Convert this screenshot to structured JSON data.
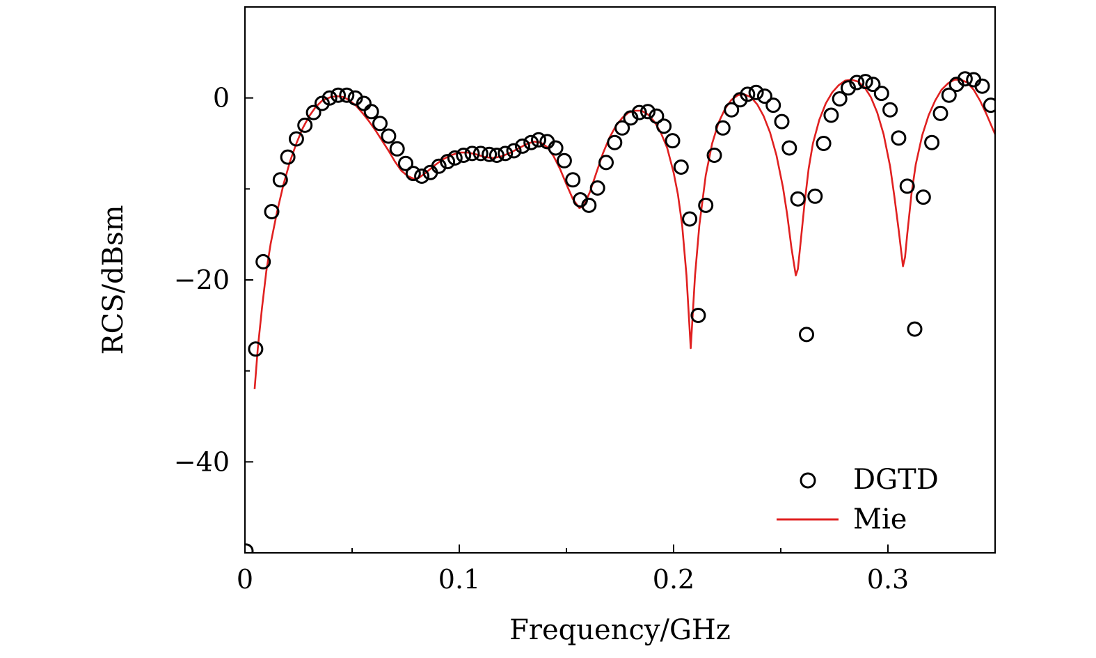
{
  "chart_data": {
    "type": "line",
    "title": "",
    "xlabel": "Frequency/GHz",
    "ylabel": "RCS/dBsm",
    "xlim": [
      0,
      0.35
    ],
    "ylim": [
      -50,
      10
    ],
    "x_ticks": [
      {
        "value": 0,
        "label": "0"
      },
      {
        "value": 0.1,
        "label": "0.1"
      },
      {
        "value": 0.2,
        "label": "0.2"
      },
      {
        "value": 0.3,
        "label": "0.3"
      }
    ],
    "x_minor_ticks": [
      0.05,
      0.15,
      0.25
    ],
    "y_ticks": [
      {
        "value": 0,
        "label": "0"
      },
      {
        "value": -20,
        "label": "−20"
      },
      {
        "value": -40,
        "label": "−40"
      }
    ],
    "y_minor_ticks": [
      -10,
      -30
    ],
    "grid": false,
    "legend_position": "bottom-right",
    "colors": {
      "mie": "#e02020",
      "dgtd": "#000000"
    },
    "series": [
      {
        "name": "DGTD",
        "style": "open-circle",
        "x": [
          0.0005,
          0.005,
          0.0085,
          0.0125,
          0.0165,
          0.02,
          0.024,
          0.028,
          0.032,
          0.036,
          0.0395,
          0.0435,
          0.0475,
          0.0515,
          0.0555,
          0.059,
          0.063,
          0.067,
          0.071,
          0.075,
          0.0785,
          0.0825,
          0.0865,
          0.0905,
          0.0945,
          0.098,
          0.102,
          0.106,
          0.11,
          0.114,
          0.1175,
          0.1215,
          0.1255,
          0.1295,
          0.1335,
          0.137,
          0.141,
          0.145,
          0.149,
          0.153,
          0.1565,
          0.1605,
          0.1645,
          0.1685,
          0.1725,
          0.176,
          0.18,
          0.184,
          0.188,
          0.192,
          0.1955,
          0.1995,
          0.2035,
          0.2075,
          0.2115,
          0.215,
          0.219,
          0.223,
          0.227,
          0.231,
          0.2345,
          0.2385,
          0.2425,
          0.2465,
          0.2505,
          0.254,
          0.258,
          0.262,
          0.266,
          0.27,
          0.2735,
          0.2775,
          0.2815,
          0.2855,
          0.2895,
          0.293,
          0.297,
          0.301,
          0.305,
          0.309,
          0.3125,
          0.3165,
          0.3205,
          0.3245,
          0.3285,
          0.332,
          0.336,
          0.34,
          0.344,
          0.348
        ],
        "values": [
          -49.8,
          -27.6,
          -18.0,
          -12.5,
          -9.0,
          -6.5,
          -4.5,
          -3.0,
          -1.6,
          -0.6,
          0.0,
          0.3,
          0.3,
          0.0,
          -0.6,
          -1.5,
          -2.8,
          -4.2,
          -5.6,
          -7.2,
          -8.3,
          -8.6,
          -8.2,
          -7.5,
          -7.0,
          -6.6,
          -6.3,
          -6.1,
          -6.1,
          -6.2,
          -6.3,
          -6.1,
          -5.8,
          -5.3,
          -4.9,
          -4.6,
          -4.8,
          -5.5,
          -6.9,
          -9.0,
          -11.2,
          -11.8,
          -9.9,
          -7.1,
          -4.9,
          -3.3,
          -2.2,
          -1.6,
          -1.5,
          -2.0,
          -3.1,
          -4.7,
          -7.6,
          -13.3,
          -23.9,
          -11.8,
          -6.3,
          -3.3,
          -1.3,
          -0.2,
          0.4,
          0.6,
          0.2,
          -0.8,
          -2.6,
          -5.5,
          -11.1,
          -26.0,
          -10.8,
          -5.0,
          -1.9,
          -0.1,
          1.1,
          1.7,
          1.8,
          1.5,
          0.5,
          -1.3,
          -4.4,
          -9.7,
          -25.4,
          -10.9,
          -4.9,
          -1.7,
          0.3,
          1.5,
          2.1,
          2.0,
          1.3,
          -0.8
        ]
      },
      {
        "name": "Mie",
        "style": "line",
        "x": [
          0.0045,
          0.006,
          0.008,
          0.01,
          0.012,
          0.015,
          0.018,
          0.021,
          0.024,
          0.027,
          0.03,
          0.033,
          0.036,
          0.04,
          0.043,
          0.046,
          0.049,
          0.052,
          0.055,
          0.058,
          0.061,
          0.064,
          0.067,
          0.07,
          0.073,
          0.076,
          0.079,
          0.081,
          0.084,
          0.088,
          0.092,
          0.096,
          0.1,
          0.104,
          0.108,
          0.112,
          0.116,
          0.12,
          0.124,
          0.128,
          0.132,
          0.135,
          0.138,
          0.141,
          0.144,
          0.147,
          0.15,
          0.153,
          0.156,
          0.158,
          0.161,
          0.164,
          0.167,
          0.17,
          0.173,
          0.176,
          0.179,
          0.182,
          0.185,
          0.188,
          0.191,
          0.194,
          0.197,
          0.2,
          0.202,
          0.204,
          0.206,
          0.208,
          0.21,
          0.212,
          0.215,
          0.218,
          0.221,
          0.224,
          0.227,
          0.23,
          0.233,
          0.236,
          0.239,
          0.242,
          0.245,
          0.248,
          0.251,
          0.253,
          0.255,
          0.257,
          0.258,
          0.259,
          0.261,
          0.263,
          0.265,
          0.268,
          0.271,
          0.274,
          0.277,
          0.28,
          0.283,
          0.286,
          0.289,
          0.292,
          0.295,
          0.298,
          0.301,
          0.303,
          0.305,
          0.307,
          0.308,
          0.309,
          0.311,
          0.313,
          0.316,
          0.319,
          0.322,
          0.325,
          0.328,
          0.331,
          0.334,
          0.337,
          0.34,
          0.343,
          0.346,
          0.35
        ],
        "values": [
          -32.0,
          -27.5,
          -23.0,
          -19.0,
          -16.0,
          -12.5,
          -9.5,
          -7.0,
          -5.0,
          -3.3,
          -2.0,
          -1.0,
          -0.3,
          0.1,
          0.2,
          0.1,
          -0.3,
          -0.9,
          -1.7,
          -2.6,
          -3.6,
          -4.7,
          -5.8,
          -7.0,
          -8.0,
          -8.6,
          -8.9,
          -8.8,
          -8.3,
          -7.5,
          -6.8,
          -6.3,
          -6.0,
          -6.0,
          -6.2,
          -6.5,
          -6.6,
          -6.4,
          -6.0,
          -5.5,
          -5.0,
          -4.8,
          -4.9,
          -5.4,
          -6.4,
          -7.8,
          -9.5,
          -11.1,
          -12.1,
          -11.9,
          -10.3,
          -8.2,
          -6.1,
          -4.4,
          -3.1,
          -2.2,
          -1.6,
          -1.4,
          -1.4,
          -1.8,
          -2.6,
          -3.8,
          -5.5,
          -8.2,
          -10.6,
          -14.0,
          -19.5,
          -27.5,
          -19.5,
          -14.0,
          -8.5,
          -5.0,
          -2.7,
          -1.2,
          -0.2,
          0.3,
          0.4,
          0.1,
          -0.7,
          -2.0,
          -3.8,
          -6.3,
          -9.8,
          -12.8,
          -16.5,
          -19.5,
          -18.8,
          -16.5,
          -11.8,
          -7.8,
          -5.0,
          -2.4,
          -0.6,
          0.6,
          1.4,
          1.9,
          2.0,
          1.8,
          1.2,
          0.1,
          -1.6,
          -4.0,
          -7.5,
          -10.8,
          -14.5,
          -18.5,
          -17.5,
          -15.0,
          -10.5,
          -7.3,
          -4.1,
          -1.9,
          -0.3,
          0.9,
          1.6,
          2.0,
          2.0,
          1.7,
          0.9,
          -0.3,
          -1.8,
          -4.0
        ]
      }
    ],
    "legend": [
      {
        "label": "DGTD",
        "marker": "open-circle"
      },
      {
        "label": "Mie",
        "marker": "line"
      }
    ]
  }
}
